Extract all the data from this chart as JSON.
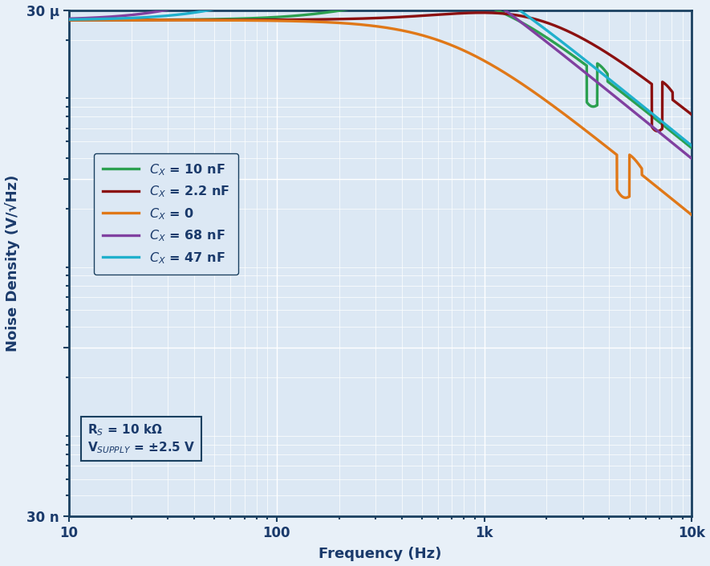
{
  "xlabel": "Frequency (Hz)",
  "ylabel": "Noise Density (V/√Hz)",
  "xlim": [
    10,
    10000
  ],
  "ylim": [
    3e-08,
    3e-05
  ],
  "noise_floor": 2.62e-05,
  "bg_color": "#dce8f4",
  "fig_color": "#e8f0f8",
  "border_color": "#1a4060",
  "grid_color": "#ffffff",
  "label_color": "#1a3a6b",
  "series": [
    {
      "label": "$C_X$ = 10 nF",
      "color": "#2ca050"
    },
    {
      "label": "$C_X$ = 2.2 nF",
      "color": "#8b1010"
    },
    {
      "label": "$C_X$ = 0",
      "color": "#e07818"
    },
    {
      "label": "$C_X$ = 68 nF",
      "color": "#8040a0"
    },
    {
      "label": "$C_X$ = 47 nF",
      "color": "#20b0cc"
    }
  ],
  "annotation1": "R$_S$ = 10 kΩ",
  "annotation2": "V$_{SUPPLY}$ = ±2.5 V"
}
